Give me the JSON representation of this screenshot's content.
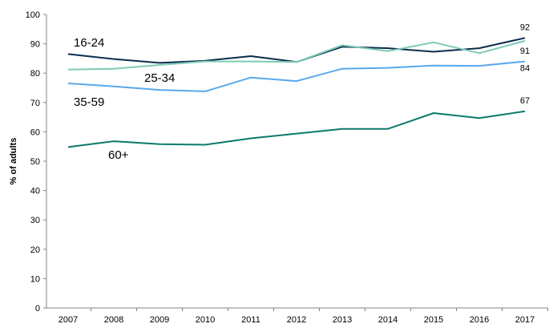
{
  "chart_data": {
    "type": "line",
    "ylabel": "% of adults",
    "ylim": [
      0,
      100
    ],
    "yticks": [
      0,
      10,
      20,
      30,
      40,
      50,
      60,
      70,
      80,
      90,
      100
    ],
    "x": [
      "2007",
      "2008",
      "2009",
      "2010",
      "2011",
      "2012",
      "2013",
      "2014",
      "2015",
      "2016",
      "2017"
    ],
    "grid": false,
    "series": [
      {
        "name": "16-24",
        "color": "#0b2d4e",
        "values": [
          86.5,
          84.8,
          83.5,
          84.2,
          85.8,
          83.8,
          89.0,
          88.5,
          87.3,
          88.5,
          92
        ],
        "end_label": "92"
      },
      {
        "name": "25-34",
        "color": "#7ecbb4",
        "values": [
          81.2,
          81.5,
          82.8,
          84.0,
          84.0,
          83.8,
          89.5,
          87.5,
          90.5,
          86.8,
          91
        ],
        "end_label": "91"
      },
      {
        "name": "35-59",
        "color": "#5aa8ea",
        "values": [
          76.5,
          75.5,
          74.3,
          73.8,
          78.5,
          77.3,
          81.5,
          81.8,
          82.6,
          82.5,
          84
        ],
        "end_label": "84"
      },
      {
        "name": "60+",
        "color": "#0b7a6b",
        "values": [
          54.8,
          56.8,
          55.8,
          55.6,
          57.8,
          59.4,
          61.0,
          61.0,
          66.4,
          64.7,
          67
        ],
        "end_label": "67"
      }
    ]
  }
}
